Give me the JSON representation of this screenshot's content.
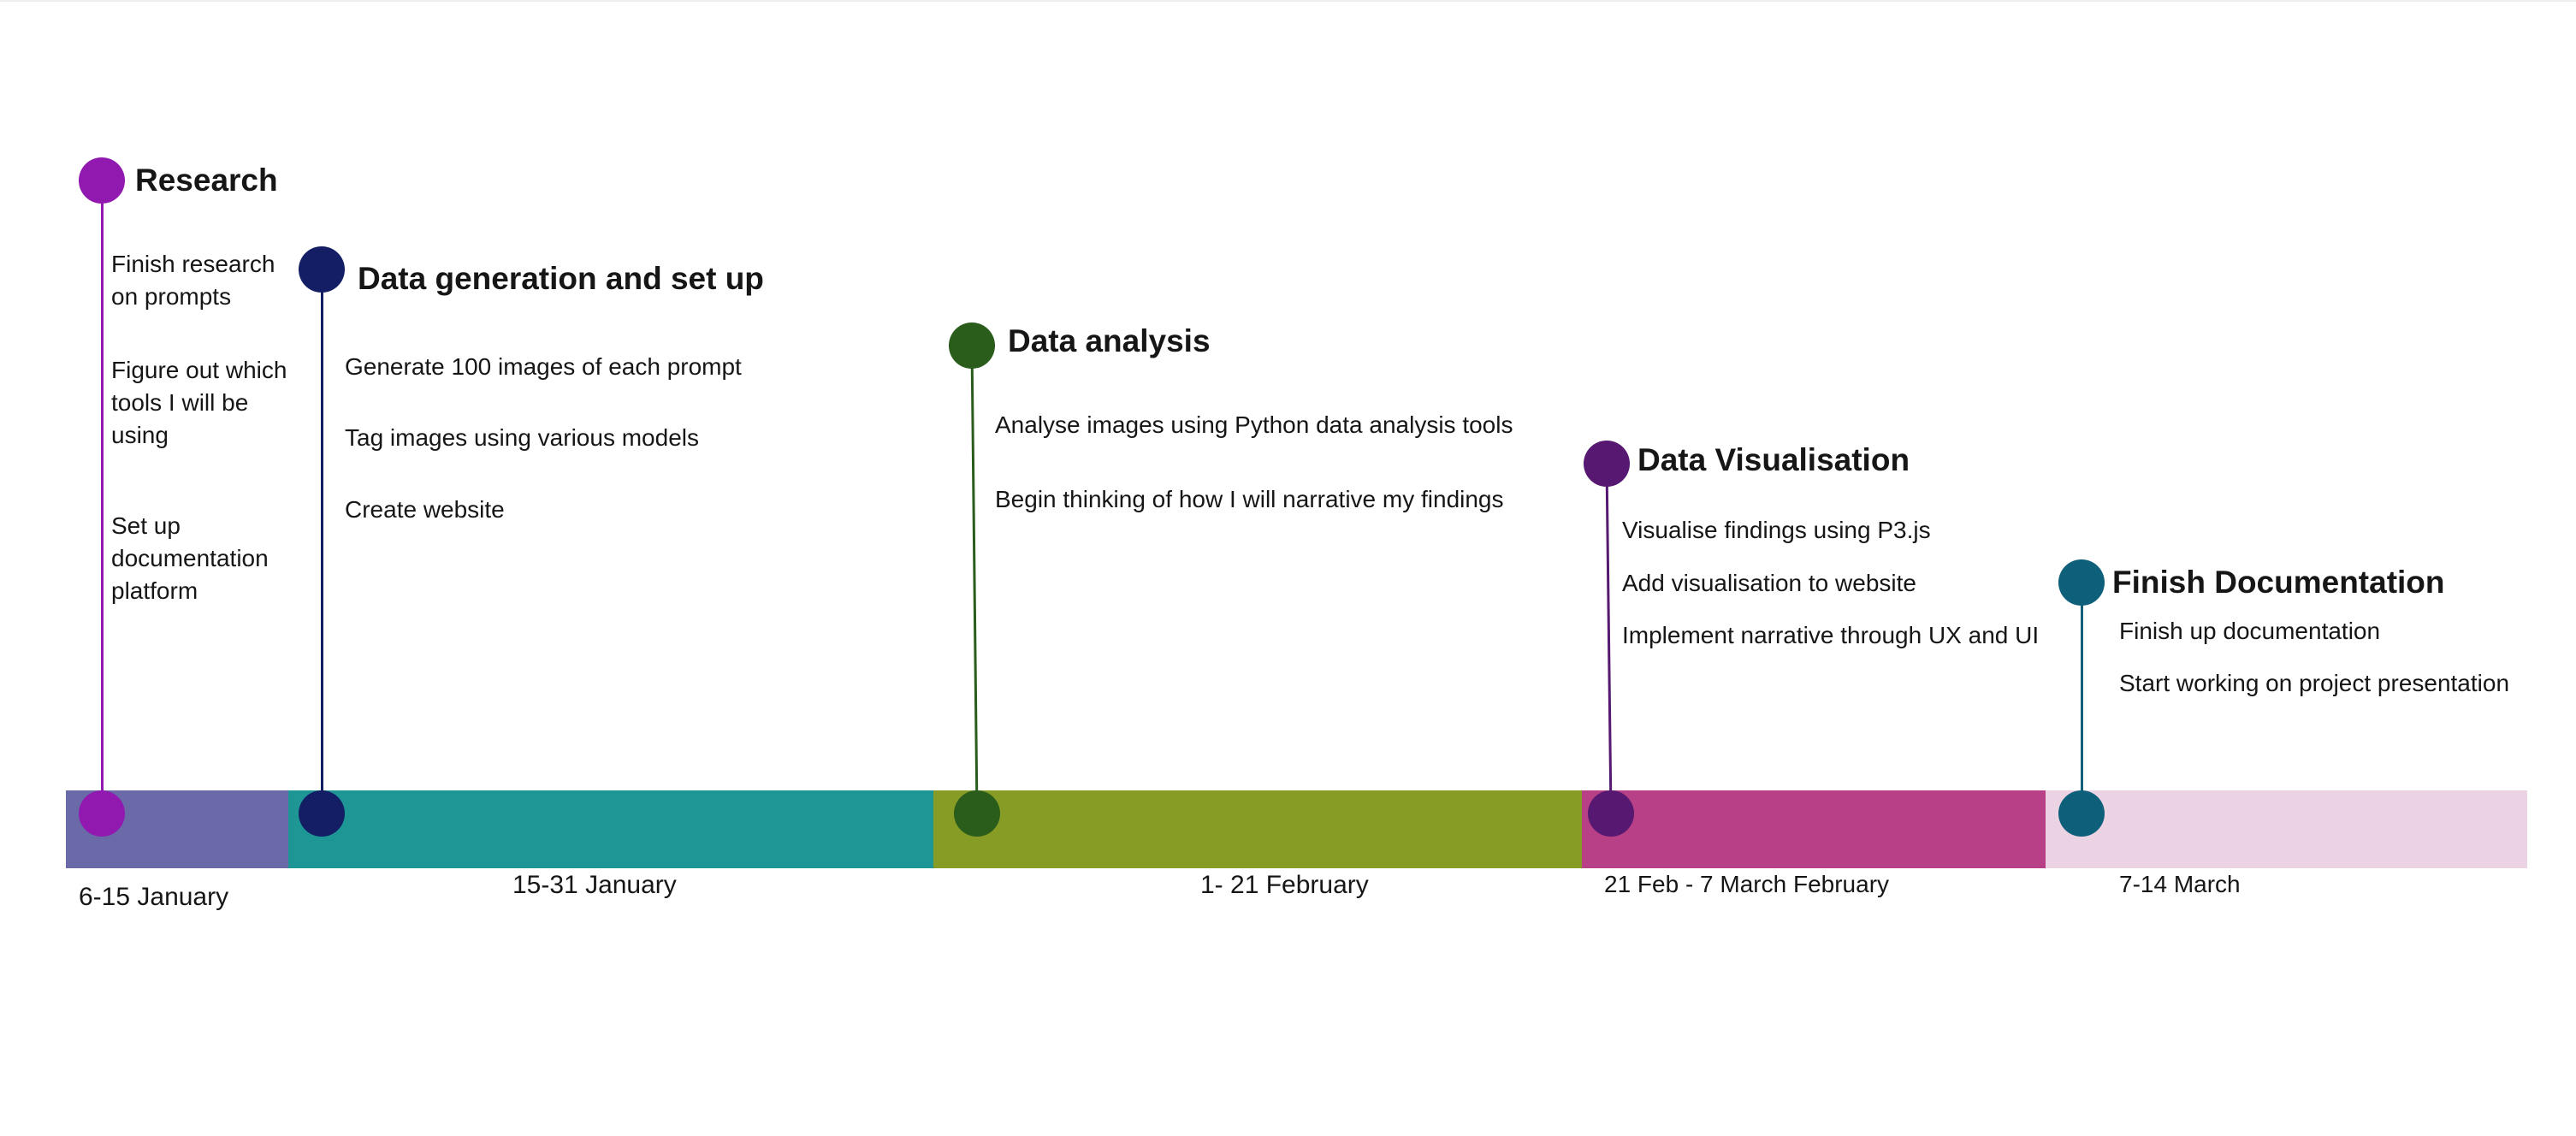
{
  "colors": {
    "research": "#9119b0",
    "data_generation": "#141e64",
    "data_analysis": "#2a5c1c",
    "data_visualisation": "#561870",
    "finish_documentation": "#0e5f7a",
    "segment_1": "#6a6aa9",
    "segment_2": "#1e9696",
    "segment_3": "#869c25",
    "segment_4": "#b74087",
    "segment_5": "#ebd3e4"
  },
  "phases": [
    {
      "title": "Research",
      "tasks": [
        "Finish research on prompts",
        "Figure out which tools I will be using",
        "Set up documentation platform"
      ]
    },
    {
      "title": "Data generation and set up",
      "tasks": [
        "Generate 100 images of each prompt",
        "Tag images using various models",
        "Create website"
      ]
    },
    {
      "title": "Data analysis",
      "tasks": [
        "Analyse images using Python data analysis tools",
        "Begin thinking of how I will narrative my findings"
      ]
    },
    {
      "title": "Data Visualisation",
      "tasks": [
        "Visualise findings using P3.js",
        "Add visualisation to website",
        "Implement narrative through UX and UI"
      ]
    },
    {
      "title": "Finish Documentation",
      "tasks": [
        "Finish up documentation",
        "Start working on project presentation"
      ]
    }
  ],
  "dates": [
    "6-15 January",
    "15-31 January",
    "1- 21 February",
    "21 Feb - 7 March February",
    "7-14 March"
  ]
}
